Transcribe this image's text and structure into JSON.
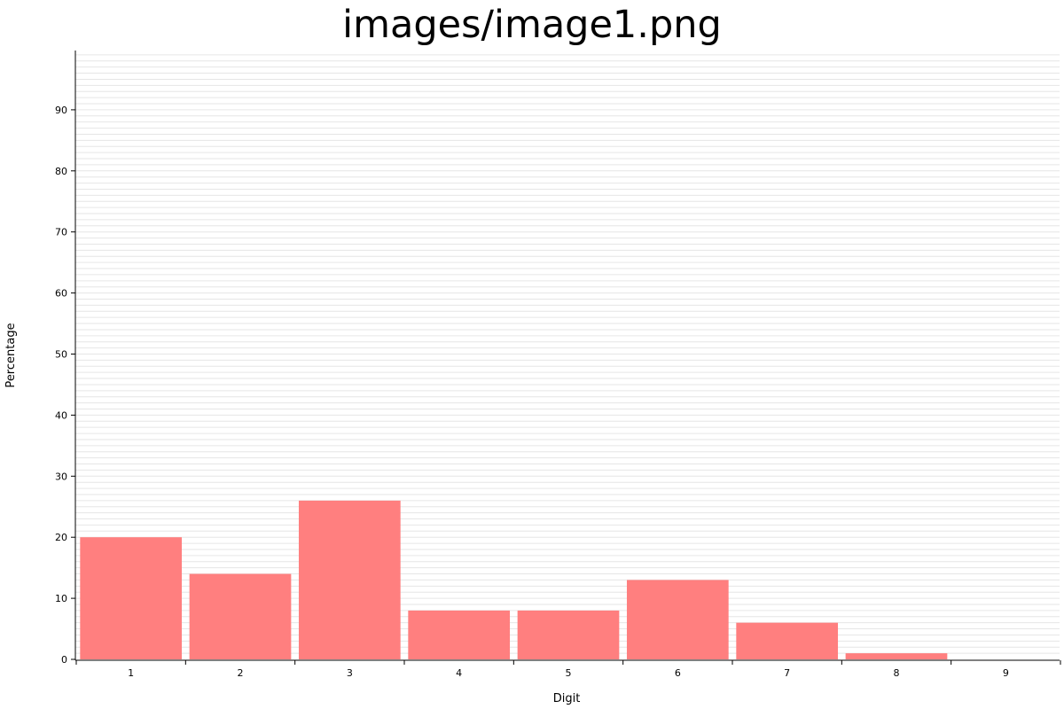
{
  "chart_data": {
    "type": "bar",
    "title": "images/image1.png",
    "xlabel": "Digit",
    "ylabel": "Percentage",
    "categories": [
      "1",
      "2",
      "3",
      "4",
      "5",
      "6",
      "7",
      "8",
      "9"
    ],
    "values": [
      20,
      14,
      26,
      8,
      8,
      13,
      6,
      1,
      0
    ],
    "ylim": [
      0,
      100
    ],
    "yticks": [
      0,
      10,
      20,
      30,
      40,
      50,
      60,
      70,
      80,
      90
    ],
    "grid": true,
    "bar_color": "#ff7f7f",
    "grid_color": "#e6e6e6",
    "axis_color": "#000000"
  }
}
